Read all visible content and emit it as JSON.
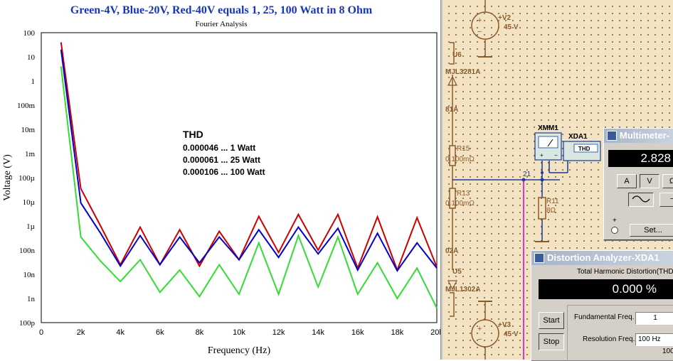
{
  "chart": {
    "title": "Green-4V, Blue-20V, Red-40V equals 1, 25, 100 Watt in 8 Ohm",
    "subtitle": "Fourier Analysis",
    "xlabel": "Frequency (Hz)",
    "ylabel": "Voltage (V)",
    "thd_heading": "THD",
    "thd_lines": [
      "0.000046 ... 1 Watt",
      "0.000061 ... 25 Watt",
      "0.000106 ... 100 Watt"
    ]
  },
  "chart_data": {
    "type": "line",
    "title": "Green-4V, Blue-20V, Red-40V equals 1, 25, 100 Watt in 8 Ohm",
    "subtitle": "Fourier Analysis",
    "xlabel": "Frequency (Hz)",
    "ylabel": "Voltage (V)",
    "yscale": "log",
    "xlim": [
      0,
      20000
    ],
    "ylim": [
      1e-10,
      100
    ],
    "grid": true,
    "x_ticks": [
      "0",
      "2k",
      "4k",
      "6k",
      "8k",
      "10k",
      "12k",
      "14k",
      "16k",
      "18k",
      "20k"
    ],
    "y_ticks": [
      "100p",
      "1n",
      "10n",
      "100n",
      "1µ",
      "10µ",
      "100µ",
      "1m",
      "10m",
      "100m",
      "1",
      "10",
      "100"
    ],
    "x": [
      1000,
      2000,
      3000,
      4000,
      5000,
      6000,
      7000,
      8000,
      9000,
      10000,
      11000,
      12000,
      13000,
      14000,
      15000,
      16000,
      17000,
      18000,
      19000,
      20000
    ],
    "series": [
      {
        "color": "#cc0000",
        "values": [
          40,
          3.5e-05,
          1e-06,
          2.5e-08,
          9e-07,
          2.5e-08,
          7e-07,
          2.2e-08,
          6e-07,
          4e-08,
          2.5e-06,
          8e-08,
          3e-06,
          1e-07,
          3e-06,
          1.8e-08,
          2.4e-06,
          1.5e-08,
          2.2e-06,
          2e-08
        ]
      },
      {
        "color": "#0000cc",
        "values": [
          20,
          9e-06,
          5e-07,
          2.2e-08,
          4e-07,
          2.5e-08,
          3.5e-07,
          3e-08,
          3.5e-07,
          4e-08,
          7e-07,
          5e-08,
          9e-07,
          7e-08,
          8e-07,
          1.5e-08,
          5e-07,
          1.4e-08,
          2e-07,
          1.8e-08
        ]
      },
      {
        "color": "#33dd33",
        "values": [
          4,
          3.5e-07,
          3.5e-08,
          5e-09,
          4e-08,
          1.8e-09,
          1.5e-08,
          1.2e-09,
          2.5e-08,
          1.5e-09,
          2e-07,
          1.5e-09,
          4e-07,
          3e-09,
          3.5e-07,
          1.5e-09,
          3e-08,
          1e-09,
          1.8e-08,
          4e-10
        ]
      }
    ]
  },
  "schematic": {
    "v2_name": "+V2",
    "v2_value": "45 V",
    "v3_name": "+V3",
    "v3_value": "45 V",
    "u6_name": "U6",
    "u6_part": "MJL3281A",
    "u5_name": "U5",
    "u5_part": "MJL1302A",
    "current_top": "81A",
    "current_bottom": "02A",
    "r15_name": "R15",
    "r15_value": "0.100mΩ",
    "r13_name": "R13",
    "r13_value": "0.100mΩ",
    "r11_name": "R11",
    "r11_value": "8Ω",
    "node_label": "21",
    "xmm_name": "XMM1",
    "xda_name": "XDA1",
    "thd_box_label": "THD",
    "wire_color": "#1a3a9a",
    "probe_color": "#cc00cc"
  },
  "multimeter": {
    "title": "Multimeter-",
    "reading": "2.828",
    "buttons": [
      "A",
      "V",
      "Ω"
    ],
    "settings_label": "Set...",
    "plus_label": "+",
    "minus_label": "−"
  },
  "distortion": {
    "title": "Distortion Analyzer-XDA1",
    "heading": "Total Harmonic Distortion(THD)",
    "reading": "0.000 %",
    "start_label": "Start",
    "stop_label": "Stop",
    "fundamental_label": "Fundamental Freq.",
    "fundamental_value": "1",
    "resolution_label": "Resolution Freq.",
    "resolution_value": "100 Hz",
    "partial_value": "100"
  }
}
